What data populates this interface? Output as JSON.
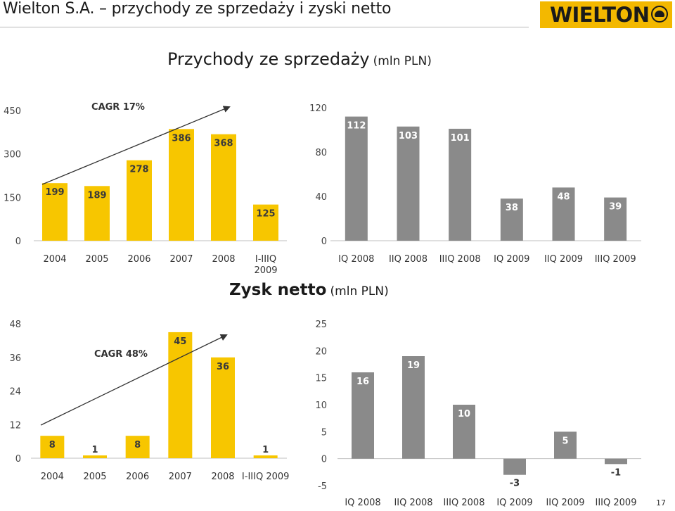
{
  "header": {
    "title": "Wielton S.A. – przychody ze sprzedaży i zyski netto",
    "logo_text": "WIELTON"
  },
  "sections": {
    "revenue_title": "Przychody ze sprzedaży",
    "revenue_unit": "(mln PLN)",
    "profit_title": "Zysk netto",
    "profit_unit": "(mln PLN)"
  },
  "colors": {
    "annual_bar": "#f7c600",
    "quarter_bar": "#8a8a8a",
    "bar_label_annual": "#3a3a3a",
    "bar_label_quarter": "#ffffff"
  },
  "chart_data": [
    {
      "id": "revenue-annual",
      "type": "bar",
      "categories": [
        "2004",
        "2005",
        "2006",
        "2007",
        "2008",
        "I-IIIQ 2009"
      ],
      "values": [
        199,
        189,
        278,
        386,
        368,
        125
      ],
      "ylim": [
        0,
        450
      ],
      "yticks": [
        "0",
        "150",
        "300",
        "450"
      ],
      "grid": false,
      "annotation": "CAGR 17%"
    },
    {
      "id": "revenue-quarterly",
      "type": "bar",
      "categories": [
        "IQ 2008",
        "IIQ 2008",
        "IIIQ 2008",
        "IQ 2009",
        "IIQ 2009",
        "IIIQ 2009"
      ],
      "values": [
        112,
        103,
        101,
        38,
        48,
        39
      ],
      "ylim": [
        0,
        120
      ],
      "yticks": [
        "0",
        "40",
        "80",
        "120"
      ],
      "grid": false
    },
    {
      "id": "profit-annual",
      "type": "bar",
      "categories": [
        "2004",
        "2005",
        "2006",
        "2007",
        "2008",
        "I-IIIQ 2009"
      ],
      "values": [
        8,
        1,
        8,
        45,
        36,
        1
      ],
      "ylim": [
        0,
        48
      ],
      "yticks": [
        "0",
        "12",
        "24",
        "36",
        "48"
      ],
      "grid": false,
      "annotation": "CAGR 48%"
    },
    {
      "id": "profit-quarterly",
      "type": "bar",
      "categories": [
        "IQ 2008",
        "IIQ 2008",
        "IIIQ 2008",
        "IQ 2009",
        "IIQ 2009",
        "IIIQ 2009"
      ],
      "values": [
        16,
        19,
        10,
        -3,
        5,
        -1
      ],
      "ylim": [
        -5,
        25
      ],
      "yticks": [
        "-5",
        "0",
        "5",
        "10",
        "15",
        "20",
        "25"
      ],
      "grid": false
    }
  ],
  "page_number": "17"
}
